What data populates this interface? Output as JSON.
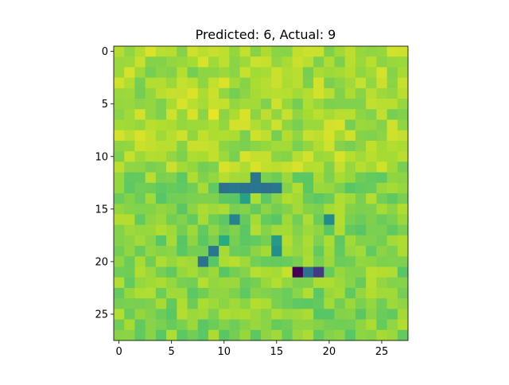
{
  "chart_data": {
    "type": "heatmap",
    "title": "Predicted: 6, Actual: 9",
    "xlabel": "",
    "ylabel": "",
    "grid": false,
    "colormap": "viridis",
    "rows": 28,
    "cols": 28,
    "vmin": 0,
    "vmax": 1,
    "xticks": [
      0,
      5,
      10,
      15,
      20,
      25
    ],
    "yticks": [
      0,
      5,
      10,
      15,
      20,
      25
    ],
    "base_level": 0.82,
    "highlights": [
      {
        "row": 6,
        "col": 9,
        "value": 0.97
      },
      {
        "row": 12,
        "col": 13,
        "value": 0.4
      },
      {
        "row": 13,
        "col": 10,
        "value": 0.38
      },
      {
        "row": 13,
        "col": 11,
        "value": 0.4
      },
      {
        "row": 13,
        "col": 12,
        "value": 0.38
      },
      {
        "row": 13,
        "col": 13,
        "value": 0.4
      },
      {
        "row": 13,
        "col": 14,
        "value": 0.38
      },
      {
        "row": 13,
        "col": 15,
        "value": 0.4
      },
      {
        "row": 14,
        "col": 12,
        "value": 0.58
      },
      {
        "row": 16,
        "col": 11,
        "value": 0.45
      },
      {
        "row": 16,
        "col": 20,
        "value": 0.48
      },
      {
        "row": 18,
        "col": 10,
        "value": 0.62
      },
      {
        "row": 18,
        "col": 15,
        "value": 0.55
      },
      {
        "row": 19,
        "col": 9,
        "value": 0.4
      },
      {
        "row": 19,
        "col": 15,
        "value": 0.5
      },
      {
        "row": 20,
        "col": 8,
        "value": 0.38
      },
      {
        "row": 21,
        "col": 16,
        "value": 0.92
      },
      {
        "row": 21,
        "col": 17,
        "value": 0.0
      },
      {
        "row": 21,
        "col": 18,
        "value": 0.38
      },
      {
        "row": 21,
        "col": 19,
        "value": 0.18
      }
    ]
  }
}
